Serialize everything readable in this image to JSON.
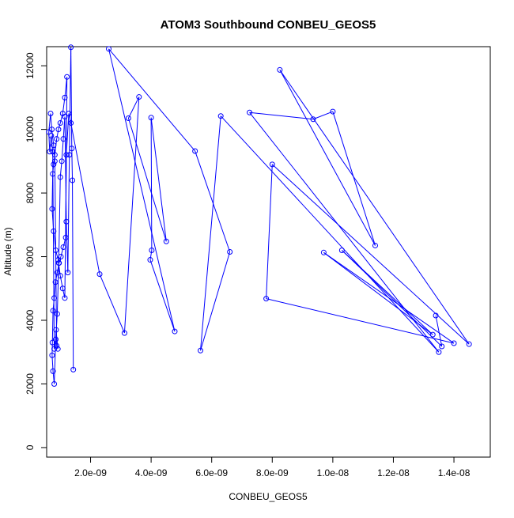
{
  "chart_data": {
    "type": "line",
    "title": "ATOM3 Southbound CONBEU_GEOS5",
    "xlabel": "CONBEU_GEOS5",
    "ylabel": "Altitude (m)",
    "xlim": [
      5.5e-10,
      1.52e-08
    ],
    "ylim": [
      -300,
      12600
    ],
    "xticks": [
      2e-09,
      4e-09,
      6e-09,
      8e-09,
      1e-08,
      1.2e-08,
      1.4e-08
    ],
    "xtick_labels": [
      "2.0e-09",
      "4.0e-09",
      "6.0e-09",
      "8.0e-09",
      "1.0e-08",
      "1.2e-08",
      "1.4e-08"
    ],
    "yticks": [
      0,
      2000,
      4000,
      6000,
      8000,
      10000,
      12000
    ],
    "ytick_labels": [
      "0",
      "2000",
      "4000",
      "6000",
      "8000",
      "10000",
      "12000"
    ],
    "series_color": "#0000ff",
    "grid": false,
    "series": [
      {
        "marker": "open-circle",
        "x": [
          1.43e-09,
          1.4e-09,
          1.38e-09,
          1.35e-09,
          1.3e-09,
          1.25e-09,
          1.2e-09,
          1.15e-09,
          1.1e-09,
          1.05e-09,
          1e-09,
          9.5e-10,
          9e-10,
          8.5e-10,
          8e-10,
          7.5e-10,
          7e-10,
          6.5e-10,
          6.2e-10,
          6.8e-10,
          7.2e-10,
          7.8e-10,
          8.2e-10,
          8.8e-10,
          9.2e-10,
          8.6e-10,
          8e-10,
          7.6e-10,
          7.3e-10,
          7.4e-10,
          7.6e-10,
          8e-10,
          8.4e-10,
          9e-10,
          9.6e-10,
          1.02e-09,
          1.1e-09,
          1.18e-09,
          1.22e-09,
          1.15e-09,
          1.08e-09,
          1e-09,
          9.4e-10,
          8.8e-10,
          8.2e-10,
          7.8e-10,
          7.5e-10,
          7.3e-10,
          7.8e-10,
          8.5e-10,
          9.3e-10,
          1e-09,
          1.08e-09,
          1.15e-09,
          1.2e-09,
          1.28e-09,
          1.35e-09,
          2.3e-09,
          3.12e-09,
          3.6e-09,
          3.25e-09,
          4.5e-09,
          4e-09,
          4.02e-09,
          3.97e-09,
          4.78e-09,
          2.6e-09,
          5.45e-09,
          6.6e-09,
          5.63e-09,
          6.3e-09,
          1.35e-08,
          7.25e-09,
          9.35e-09,
          1e-08,
          1.14e-08,
          8.25e-09,
          1.45e-08,
          8e-09,
          7.8e-09,
          1.4e-08,
          9.7e-09,
          1.33e-08,
          1.03e-08,
          1.36e-08,
          1.34e-08
        ],
        "y": [
          2450,
          8400,
          9400,
          12580,
          9200,
          5500,
          7100,
          10400,
          9700,
          9000,
          8500,
          5800,
          4200,
          3400,
          3100,
          9300,
          9800,
          9300,
          9920,
          10500,
          10000,
          9500,
          9000,
          3200,
          3100,
          3700,
          2000,
          2400,
          2900,
          3300,
          4300,
          4700,
          5200,
          5500,
          5800,
          6000,
          6300,
          6600,
          11650,
          11000,
          10500,
          10200,
          10000,
          9700,
          9200,
          8900,
          8600,
          7500,
          6800,
          6200,
          5900,
          5400,
          5000,
          4700,
          9200,
          10500,
          10200,
          5450,
          3600,
          11020,
          10350,
          6480,
          10370,
          6200,
          5900,
          3650,
          12530,
          9320,
          6150,
          3050,
          10420,
          3000,
          10530,
          10320,
          10560,
          6350,
          11870,
          3250,
          8900,
          4680,
          3280,
          6130,
          3550,
          6200,
          3180,
          4150
        ]
      }
    ]
  }
}
